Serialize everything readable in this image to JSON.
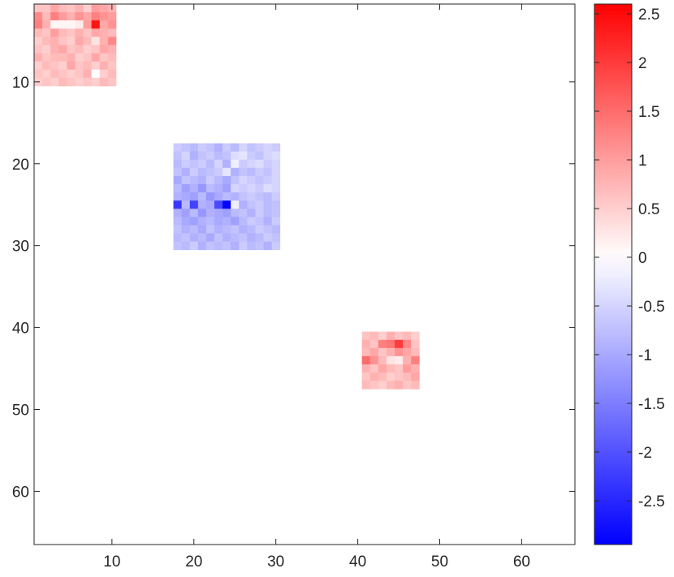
{
  "chart_data": {
    "type": "heatmap",
    "title": "",
    "xlabel": "",
    "ylabel": "",
    "xlim": [
      0.5,
      66.5
    ],
    "ylim": [
      0.5,
      66.5
    ],
    "y_direction": "reverse",
    "grid": false,
    "colormap": [
      "#0000ff",
      "#ffffff",
      "#ff0000"
    ],
    "clim": [
      -2.95,
      2.6
    ],
    "background_value": 0,
    "xticks": [
      10,
      20,
      30,
      40,
      50,
      60
    ],
    "yticks": [
      10,
      20,
      30,
      40,
      50,
      60
    ],
    "colorbar_ticks": [
      "2.5",
      "2",
      "1.5",
      "1",
      "0.5",
      "0",
      "-0.5",
      "-1",
      "-1.5",
      "-2",
      "-2.5"
    ],
    "colorbar_tick_values": [
      2.5,
      2,
      1.5,
      1,
      0.5,
      0,
      -0.5,
      -1,
      -1.5,
      -2,
      -2.5
    ],
    "blocks": [
      {
        "row_start": 1,
        "col_start": 1,
        "values": [
          [
            0.6,
            0.6,
            0.9,
            0.7,
            0.6,
            0.8,
            0.5,
            1.0,
            0.9,
            0.8
          ],
          [
            1.2,
            0.7,
            1.3,
            1.0,
            0.8,
            1.1,
            0.9,
            1.3,
            1.1,
            1.0
          ],
          [
            1.3,
            0.8,
            0.1,
            0.1,
            0.1,
            0.2,
            1.0,
            2.4,
            0.9,
            1.1
          ],
          [
            0.7,
            0.6,
            1.0,
            0.7,
            0.6,
            0.8,
            0.6,
            0.9,
            0.8,
            0.7
          ],
          [
            0.5,
            0.7,
            0.8,
            0.6,
            0.5,
            0.9,
            0.7,
            0.3,
            0.8,
            1.2
          ],
          [
            0.6,
            0.5,
            0.8,
            0.9,
            0.6,
            0.7,
            0.5,
            0.6,
            0.9,
            0.8
          ],
          [
            0.8,
            0.6,
            0.7,
            0.7,
            0.8,
            0.5,
            0.6,
            0.9,
            0.6,
            0.7
          ],
          [
            0.5,
            0.7,
            0.6,
            0.5,
            0.9,
            0.6,
            0.7,
            0.5,
            0.8,
            0.6
          ],
          [
            0.6,
            0.5,
            0.7,
            0.6,
            0.5,
            0.6,
            0.8,
            0.0,
            0.5,
            0.7
          ],
          [
            0.5,
            0.6,
            0.5,
            0.7,
            0.6,
            0.5,
            0.6,
            0.5,
            0.7,
            0.6
          ]
        ]
      },
      {
        "row_start": 18,
        "col_start": 18,
        "values": [
          [
            -0.6,
            -0.7,
            -0.8,
            -0.6,
            -0.7,
            -0.9,
            -0.6,
            -0.8,
            -0.5,
            -0.7,
            -0.6,
            -0.5,
            -0.6
          ],
          [
            -0.7,
            -0.5,
            -0.9,
            -0.7,
            -0.6,
            -0.8,
            -0.7,
            -0.4,
            -0.3,
            -0.6,
            -0.7,
            -0.5,
            -0.4
          ],
          [
            -0.8,
            -0.6,
            -0.7,
            -0.6,
            -0.8,
            -0.5,
            -0.9,
            -0.2,
            -0.6,
            -0.5,
            -0.4,
            -0.6,
            -0.5
          ],
          [
            -0.7,
            -0.9,
            -0.6,
            -0.8,
            -0.7,
            -0.6,
            -0.3,
            -0.9,
            -0.7,
            -0.8,
            -0.6,
            -0.7,
            -0.5
          ],
          [
            -1.0,
            -0.7,
            -0.8,
            -0.9,
            -0.6,
            -0.8,
            -1.0,
            -0.7,
            -0.5,
            -0.6,
            -0.7,
            -0.6,
            -0.5
          ],
          [
            -0.8,
            -1.1,
            -0.9,
            -1.2,
            -0.8,
            -0.9,
            -1.1,
            -0.5,
            -0.6,
            -0.5,
            -0.6,
            -0.4,
            -0.5
          ],
          [
            -0.9,
            -1.0,
            -1.1,
            -0.8,
            -1.2,
            -1.0,
            -0.8,
            -0.9,
            -0.7,
            -0.6,
            -0.7,
            -0.8,
            -0.6
          ],
          [
            -2.3,
            -0.8,
            -2.2,
            -0.9,
            -1.0,
            -2.1,
            -2.9,
            -0.2,
            -0.9,
            -0.7,
            -0.6,
            -0.8,
            -0.7
          ],
          [
            -0.9,
            -1.1,
            -0.8,
            -1.2,
            -0.9,
            -1.0,
            -1.1,
            -0.8,
            -0.7,
            -0.9,
            -0.6,
            -0.8,
            -0.7
          ],
          [
            -0.8,
            -1.0,
            -1.1,
            -0.9,
            -0.8,
            -1.0,
            -0.9,
            -1.1,
            -0.8,
            -0.6,
            -0.7,
            -0.9,
            -0.6
          ],
          [
            -0.7,
            -0.9,
            -0.8,
            -1.0,
            -0.7,
            -0.9,
            -0.8,
            -0.7,
            -0.9,
            -0.8,
            -0.6,
            -0.7,
            -0.8
          ],
          [
            -0.8,
            -0.7,
            -0.9,
            -0.8,
            -1.0,
            -0.7,
            -0.9,
            -0.8,
            -0.7,
            -0.9,
            -0.8,
            -0.6,
            -0.7
          ],
          [
            -0.7,
            -0.8,
            -0.6,
            -0.9,
            -0.7,
            -0.8,
            -0.7,
            -0.9,
            -0.6,
            -0.8,
            -0.7,
            -0.9,
            -0.6
          ]
        ]
      },
      {
        "row_start": 41,
        "col_start": 41,
        "values": [
          [
            0.6,
            0.7,
            0.5,
            0.8,
            0.6,
            0.7,
            0.5
          ],
          [
            0.8,
            0.6,
            1.3,
            1.4,
            2.0,
            1.2,
            0.6
          ],
          [
            0.7,
            0.9,
            0.6,
            0.8,
            1.1,
            0.9,
            0.7
          ],
          [
            1.5,
            1.1,
            0.7,
            0.3,
            0.2,
            0.8,
            1.3
          ],
          [
            0.8,
            0.6,
            0.9,
            0.7,
            0.6,
            1.0,
            0.8
          ],
          [
            0.6,
            0.8,
            0.7,
            0.5,
            0.6,
            0.7,
            0.9
          ],
          [
            0.7,
            0.6,
            0.5,
            0.7,
            0.8,
            0.6,
            0.7
          ]
        ]
      }
    ]
  }
}
